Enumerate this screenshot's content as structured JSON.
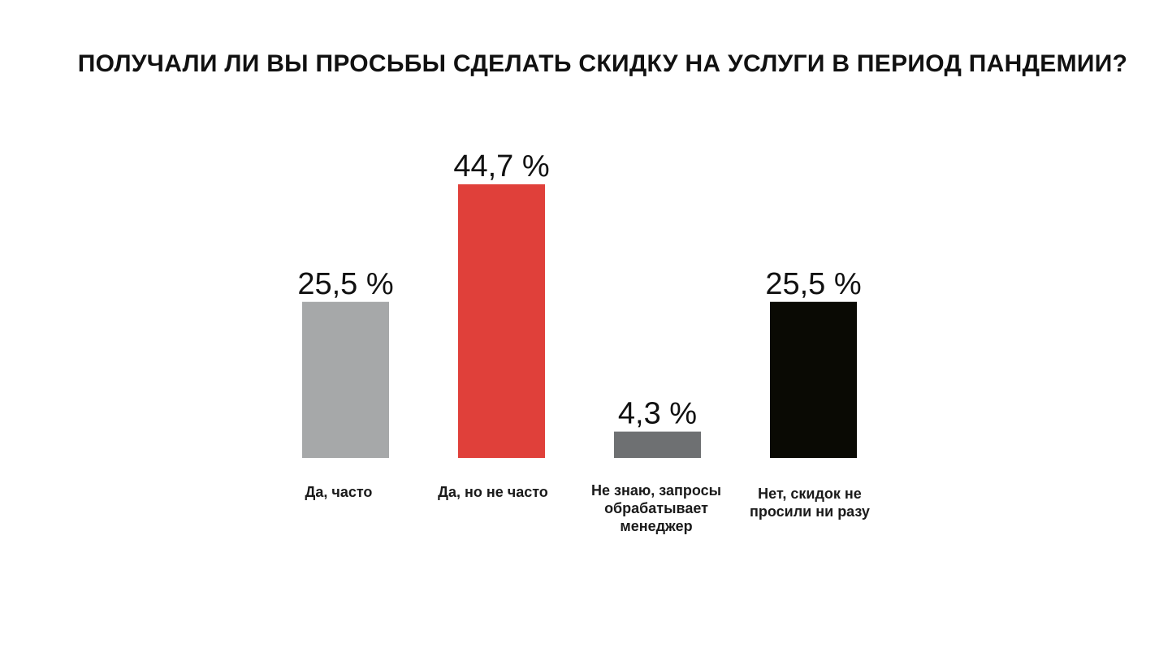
{
  "chart_data": {
    "type": "bar",
    "title": "ПОЛУЧАЛИ ЛИ ВЫ ПРОСЬБЫ СДЕЛАТЬ СКИДКУ НА УСЛУГИ В ПЕРИОД ПАНДЕМИИ?",
    "categories": [
      "Да, часто",
      "Да, но не часто",
      "Не знаю, запросы обрабатывает менеджер",
      "Нет, скидок не просили ни разу"
    ],
    "values": [
      25.5,
      44.7,
      4.3,
      25.5
    ],
    "value_labels": [
      "25,5 %",
      "44,7 %",
      "4,3 %",
      "25,5 %"
    ],
    "colors": [
      "#a6a8a9",
      "#e0403a",
      "#6e7072",
      "#0a0a04"
    ],
    "ylim": [
      0,
      44.7
    ],
    "grid": false,
    "axes_visible": false
  }
}
